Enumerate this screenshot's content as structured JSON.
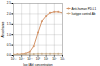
{
  "chart_data": {
    "type": "line",
    "title": "",
    "xlabel": "log (Ab) concentration",
    "ylabel": "Absorbance",
    "x": [
      0.001,
      0.003,
      0.01,
      0.03,
      0.1,
      0.3,
      1.0,
      3.0,
      10.0,
      30.0,
      100.0,
      300.0,
      1000.0
    ],
    "series": [
      {
        "name": "Anti-human PD-L1",
        "color": "#D4956A",
        "marker": "o",
        "values": [
          0.05,
          0.06,
          0.07,
          0.1,
          0.18,
          0.45,
          1.1,
          1.65,
          1.9,
          2.05,
          2.1,
          2.1,
          2.05
        ]
      },
      {
        "name": "Isotype control Ab",
        "color": "#C8B090",
        "marker": "o",
        "values": [
          0.04,
          0.05,
          0.05,
          0.06,
          0.07,
          0.07,
          0.08,
          0.08,
          0.08,
          0.08,
          0.08,
          0.08,
          0.08
        ]
      }
    ],
    "log": "x",
    "xlim": [
      0.001,
      1000
    ],
    "xticks": [
      {
        "value": 0.001,
        "label": "10⁻³"
      },
      {
        "value": 0.01,
        "label": "10⁻²"
      },
      {
        "value": 0.1,
        "label": "10⁻¹"
      },
      {
        "value": 1,
        "label": "10⁰"
      },
      {
        "value": 10,
        "label": "10¹"
      },
      {
        "value": 100,
        "label": "10²"
      },
      {
        "value": 1000,
        "label": "10³"
      }
    ],
    "ylim": [
      0.0,
      2.5
    ],
    "yticks": [
      {
        "value": 0,
        "label": "0.0"
      },
      {
        "value": 0.5,
        "label": "0.5"
      },
      {
        "value": 1,
        "label": "1.0"
      },
      {
        "value": 1.5,
        "label": "1.5"
      },
      {
        "value": 2,
        "label": "2.0"
      },
      {
        "value": 2.5,
        "label": "2.5"
      }
    ],
    "grid": true,
    "legend": "right"
  }
}
